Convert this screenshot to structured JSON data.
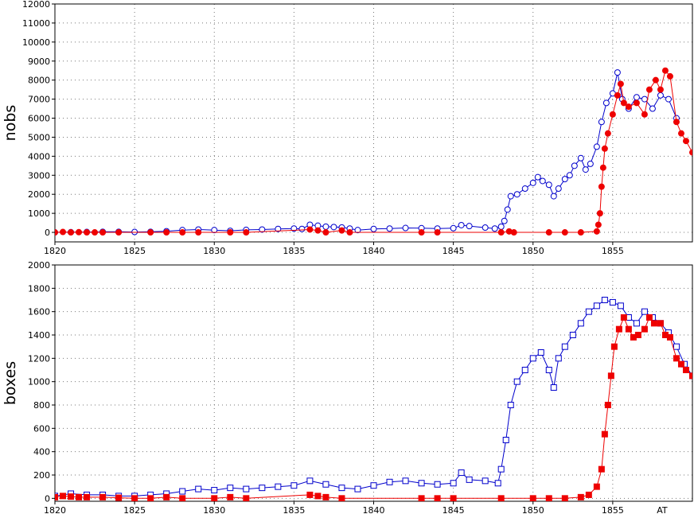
{
  "chart_data": [
    {
      "type": "line",
      "ylabel": "nobs",
      "xlabel": "",
      "xlim": [
        1820,
        1860
      ],
      "ylim": [
        -500,
        12000
      ],
      "xticks": [
        1820,
        1825,
        1830,
        1835,
        1840,
        1845,
        1850,
        1855
      ],
      "yticks": [
        0,
        1000,
        2000,
        3000,
        4000,
        5000,
        6000,
        7000,
        8000,
        9000,
        10000,
        11000,
        12000
      ],
      "grid": true,
      "series": [
        {
          "color": "#0000cc",
          "marker": "open-circle",
          "points": [
            [
              1820.0,
              0
            ],
            [
              1821.0,
              10
            ],
            [
              1822.0,
              20
            ],
            [
              1823.0,
              30
            ],
            [
              1824.0,
              30
            ],
            [
              1825.0,
              20
            ],
            [
              1826.0,
              30
            ],
            [
              1827.0,
              60
            ],
            [
              1828.0,
              120
            ],
            [
              1829.0,
              150
            ],
            [
              1830.0,
              120
            ],
            [
              1831.0,
              80
            ],
            [
              1832.0,
              130
            ],
            [
              1833.0,
              150
            ],
            [
              1834.0,
              180
            ],
            [
              1835.0,
              200
            ],
            [
              1835.5,
              180
            ],
            [
              1836.0,
              400
            ],
            [
              1836.5,
              350
            ],
            [
              1837.0,
              300
            ],
            [
              1837.5,
              280
            ],
            [
              1838.0,
              260
            ],
            [
              1838.5,
              200
            ],
            [
              1839.0,
              120
            ],
            [
              1840.0,
              180
            ],
            [
              1841.0,
              200
            ],
            [
              1842.0,
              230
            ],
            [
              1843.0,
              220
            ],
            [
              1844.0,
              200
            ],
            [
              1845.0,
              220
            ],
            [
              1845.5,
              380
            ],
            [
              1846.0,
              330
            ],
            [
              1847.0,
              250
            ],
            [
              1847.6,
              200
            ],
            [
              1848.0,
              300
            ],
            [
              1848.2,
              600
            ],
            [
              1848.4,
              1200
            ],
            [
              1848.6,
              1900
            ],
            [
              1849.0,
              2000
            ],
            [
              1849.5,
              2300
            ],
            [
              1850.0,
              2600
            ],
            [
              1850.3,
              2900
            ],
            [
              1850.6,
              2700
            ],
            [
              1851.0,
              2500
            ],
            [
              1851.3,
              1900
            ],
            [
              1851.6,
              2300
            ],
            [
              1852.0,
              2800
            ],
            [
              1852.3,
              3000
            ],
            [
              1852.6,
              3500
            ],
            [
              1853.0,
              3900
            ],
            [
              1853.3,
              3300
            ],
            [
              1853.6,
              3600
            ],
            [
              1854.0,
              4500
            ],
            [
              1854.3,
              5800
            ],
            [
              1854.6,
              6800
            ],
            [
              1855.0,
              7300
            ],
            [
              1855.3,
              8400
            ],
            [
              1855.6,
              7000
            ],
            [
              1856.0,
              6500
            ],
            [
              1856.5,
              7100
            ],
            [
              1857.0,
              7000
            ],
            [
              1857.5,
              6500
            ],
            [
              1858.0,
              7200
            ],
            [
              1858.5,
              7000
            ],
            [
              1859.0,
              6000
            ]
          ]
        },
        {
          "color": "#ee0000",
          "marker": "filled-circle",
          "points": [
            [
              1820.0,
              0
            ],
            [
              1820.5,
              20
            ],
            [
              1821.0,
              0
            ],
            [
              1821.5,
              10
            ],
            [
              1822.0,
              0
            ],
            [
              1822.5,
              0
            ],
            [
              1823.0,
              0
            ],
            [
              1824.0,
              0
            ],
            [
              1826.0,
              0
            ],
            [
              1827.0,
              0
            ],
            [
              1828.0,
              0
            ],
            [
              1829.0,
              0
            ],
            [
              1831.0,
              0
            ],
            [
              1832.0,
              0
            ],
            [
              1836.0,
              150
            ],
            [
              1836.5,
              100
            ],
            [
              1837.0,
              0
            ],
            [
              1838.0,
              100
            ],
            [
              1838.5,
              0
            ],
            [
              1843.0,
              0
            ],
            [
              1844.0,
              0
            ],
            [
              1848.0,
              0
            ],
            [
              1848.5,
              50
            ],
            [
              1848.8,
              0
            ],
            [
              1851.0,
              0
            ],
            [
              1852.0,
              0
            ],
            [
              1853.0,
              0
            ],
            [
              1854.0,
              50
            ],
            [
              1854.1,
              400
            ],
            [
              1854.2,
              1000
            ],
            [
              1854.3,
              2400
            ],
            [
              1854.4,
              3400
            ],
            [
              1854.5,
              4400
            ],
            [
              1854.7,
              5200
            ],
            [
              1855.0,
              6200
            ],
            [
              1855.3,
              7200
            ],
            [
              1855.5,
              7800
            ],
            [
              1855.7,
              6800
            ],
            [
              1856.0,
              6600
            ],
            [
              1856.5,
              6800
            ],
            [
              1857.0,
              6200
            ],
            [
              1857.3,
              7500
            ],
            [
              1857.7,
              8000
            ],
            [
              1858.0,
              7500
            ],
            [
              1858.3,
              8500
            ],
            [
              1858.6,
              8200
            ],
            [
              1859.0,
              5800
            ],
            [
              1859.3,
              5200
            ],
            [
              1859.6,
              4800
            ],
            [
              1860.0,
              4200
            ]
          ]
        }
      ]
    },
    {
      "type": "line",
      "ylabel": "boxes",
      "xlabel": "",
      "annotation": "AT",
      "xlim": [
        1820,
        1860
      ],
      "ylim": [
        -25,
        2000
      ],
      "xticks": [
        1820,
        1825,
        1830,
        1835,
        1840,
        1845,
        1850,
        1855
      ],
      "yticks": [
        0,
        200,
        400,
        600,
        800,
        1000,
        1200,
        1400,
        1600,
        1800,
        2000
      ],
      "grid": true,
      "series": [
        {
          "color": "#0000cc",
          "marker": "open-square",
          "points": [
            [
              1820.0,
              20
            ],
            [
              1821.0,
              40
            ],
            [
              1822.0,
              30
            ],
            [
              1823.0,
              30
            ],
            [
              1824.0,
              20
            ],
            [
              1825.0,
              20
            ],
            [
              1826.0,
              30
            ],
            [
              1827.0,
              40
            ],
            [
              1828.0,
              60
            ],
            [
              1829.0,
              80
            ],
            [
              1830.0,
              70
            ],
            [
              1831.0,
              90
            ],
            [
              1832.0,
              80
            ],
            [
              1833.0,
              90
            ],
            [
              1834.0,
              100
            ],
            [
              1835.0,
              110
            ],
            [
              1836.0,
              150
            ],
            [
              1837.0,
              120
            ],
            [
              1838.0,
              90
            ],
            [
              1839.0,
              80
            ],
            [
              1840.0,
              110
            ],
            [
              1841.0,
              140
            ],
            [
              1842.0,
              150
            ],
            [
              1843.0,
              130
            ],
            [
              1844.0,
              120
            ],
            [
              1845.0,
              130
            ],
            [
              1845.5,
              220
            ],
            [
              1846.0,
              160
            ],
            [
              1847.0,
              150
            ],
            [
              1847.8,
              130
            ],
            [
              1848.0,
              250
            ],
            [
              1848.3,
              500
            ],
            [
              1848.6,
              800
            ],
            [
              1849.0,
              1000
            ],
            [
              1849.5,
              1100
            ],
            [
              1850.0,
              1200
            ],
            [
              1850.5,
              1250
            ],
            [
              1851.0,
              1100
            ],
            [
              1851.3,
              950
            ],
            [
              1851.6,
              1200
            ],
            [
              1852.0,
              1300
            ],
            [
              1852.5,
              1400
            ],
            [
              1853.0,
              1500
            ],
            [
              1853.5,
              1600
            ],
            [
              1854.0,
              1650
            ],
            [
              1854.5,
              1700
            ],
            [
              1855.0,
              1680
            ],
            [
              1855.5,
              1650
            ],
            [
              1856.0,
              1550
            ],
            [
              1856.5,
              1500
            ],
            [
              1857.0,
              1600
            ],
            [
              1857.5,
              1550
            ],
            [
              1858.0,
              1500
            ],
            [
              1858.5,
              1420
            ],
            [
              1859.0,
              1300
            ],
            [
              1859.5,
              1150
            ],
            [
              1860.0,
              1050
            ]
          ]
        },
        {
          "color": "#ee0000",
          "marker": "filled-square",
          "points": [
            [
              1820.0,
              10
            ],
            [
              1820.5,
              20
            ],
            [
              1821.0,
              15
            ],
            [
              1821.5,
              10
            ],
            [
              1822.0,
              10
            ],
            [
              1823.0,
              10
            ],
            [
              1824.0,
              5
            ],
            [
              1825.0,
              0
            ],
            [
              1826.0,
              0
            ],
            [
              1827.0,
              10
            ],
            [
              1828.0,
              0
            ],
            [
              1830.0,
              0
            ],
            [
              1831.0,
              10
            ],
            [
              1832.0,
              0
            ],
            [
              1836.0,
              30
            ],
            [
              1836.5,
              20
            ],
            [
              1837.0,
              10
            ],
            [
              1838.0,
              0
            ],
            [
              1843.0,
              0
            ],
            [
              1844.0,
              0
            ],
            [
              1845.0,
              0
            ],
            [
              1848.0,
              0
            ],
            [
              1850.0,
              0
            ],
            [
              1851.0,
              0
            ],
            [
              1852.0,
              0
            ],
            [
              1853.0,
              10
            ],
            [
              1853.5,
              30
            ],
            [
              1854.0,
              100
            ],
            [
              1854.3,
              250
            ],
            [
              1854.5,
              550
            ],
            [
              1854.7,
              800
            ],
            [
              1854.9,
              1050
            ],
            [
              1855.1,
              1300
            ],
            [
              1855.4,
              1450
            ],
            [
              1855.7,
              1550
            ],
            [
              1856.0,
              1450
            ],
            [
              1856.3,
              1380
            ],
            [
              1856.6,
              1400
            ],
            [
              1857.0,
              1450
            ],
            [
              1857.3,
              1550
            ],
            [
              1857.6,
              1500
            ],
            [
              1858.0,
              1500
            ],
            [
              1858.3,
              1400
            ],
            [
              1858.6,
              1380
            ],
            [
              1859.0,
              1200
            ],
            [
              1859.3,
              1150
            ],
            [
              1859.6,
              1100
            ],
            [
              1860.0,
              1050
            ]
          ]
        }
      ]
    }
  ]
}
